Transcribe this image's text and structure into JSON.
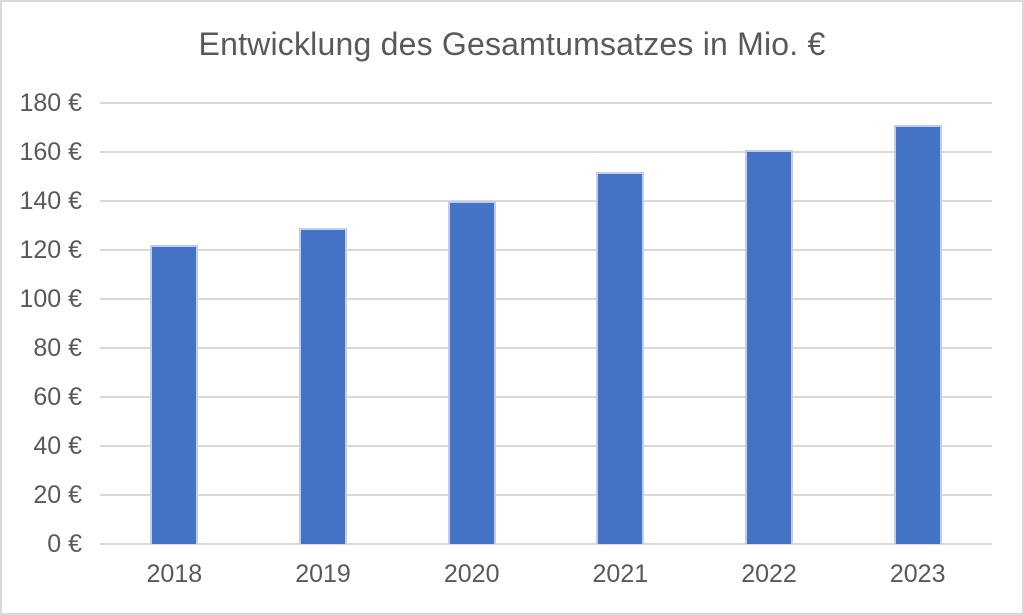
{
  "chart_data": {
    "type": "bar",
    "title": "Entwicklung des Gesamtumsatzes in Mio. €",
    "categories": [
      "2018",
      "2019",
      "2020",
      "2021",
      "2022",
      "2023"
    ],
    "values": [
      122,
      129,
      140,
      152,
      161,
      171
    ],
    "xlabel": "",
    "ylabel": "",
    "ylim": [
      0,
      180
    ],
    "ytick_step": 20,
    "yticks": [
      {
        "value": 0,
        "label": "0 €"
      },
      {
        "value": 20,
        "label": "20 €"
      },
      {
        "value": 40,
        "label": "40 €"
      },
      {
        "value": 60,
        "label": "60 €"
      },
      {
        "value": 80,
        "label": "80 €"
      },
      {
        "value": 100,
        "label": "100 €"
      },
      {
        "value": 120,
        "label": "120 €"
      },
      {
        "value": 140,
        "label": "140 €"
      },
      {
        "value": 160,
        "label": "160 €"
      },
      {
        "value": 180,
        "label": "180 €"
      }
    ],
    "grid": true,
    "legend": false,
    "colors": {
      "bar": "#4472C4",
      "bar_border": "#BFCDEB",
      "grid": "#D9D9D9",
      "text": "#595959",
      "frame": "#D9D9D9",
      "background": "#FFFFFF"
    }
  }
}
